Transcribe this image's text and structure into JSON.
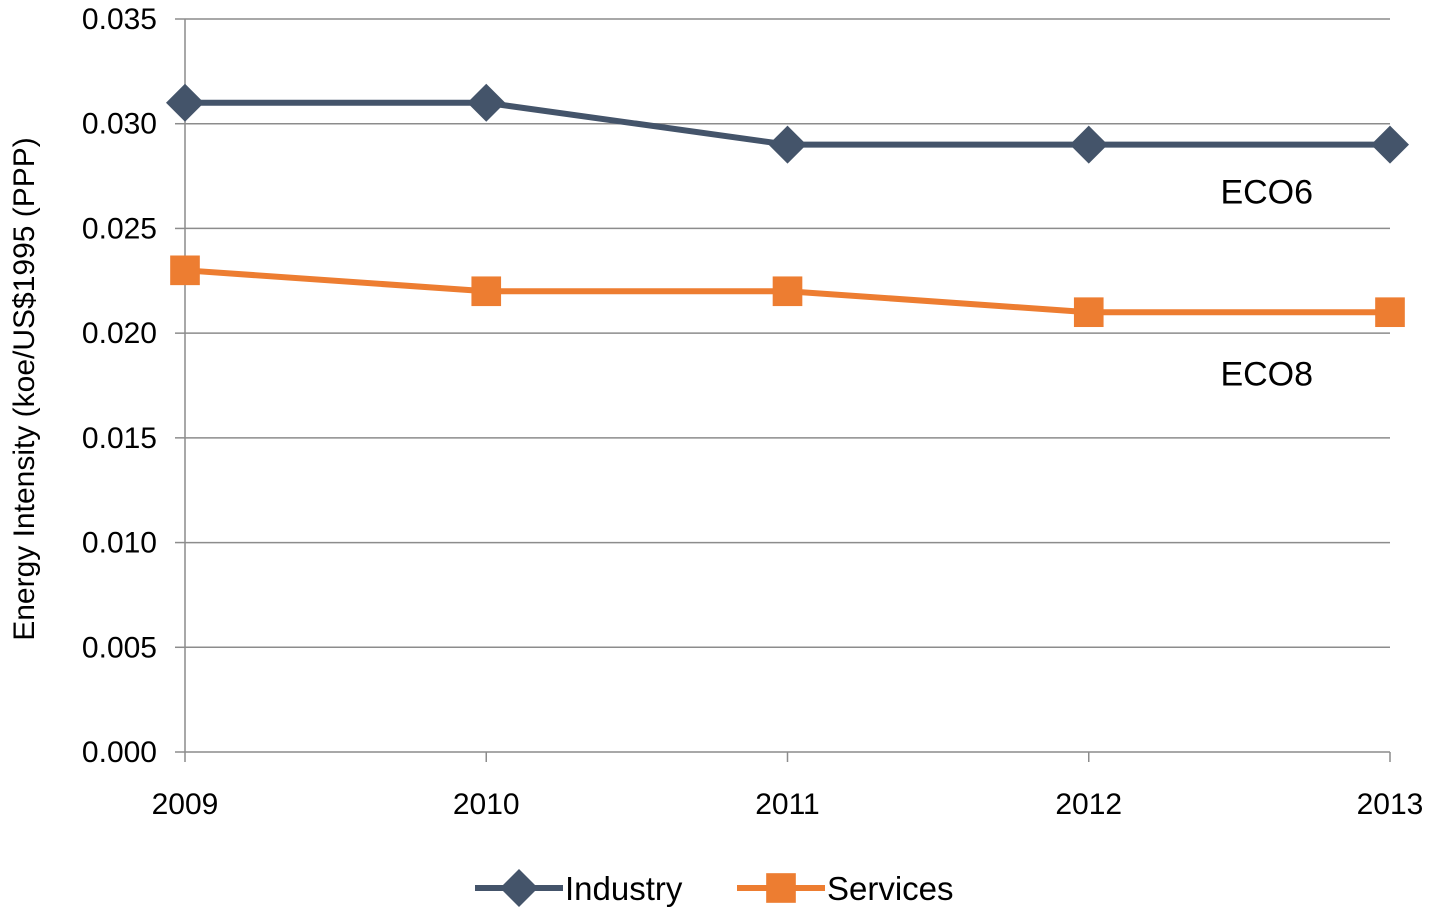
{
  "chart_data": {
    "type": "line",
    "title": "",
    "xlabel": "",
    "ylabel": "Energy Intensity (koe/US$1995 (PPP)",
    "categories": [
      "2009",
      "2010",
      "2011",
      "2012",
      "2013"
    ],
    "ylim": [
      0,
      0.035
    ],
    "yticks": [
      "0.000",
      "0.005",
      "0.010",
      "0.015",
      "0.020",
      "0.025",
      "0.030",
      "0.035"
    ],
    "grid": true,
    "legend_position": "bottom",
    "series": [
      {
        "name": "Industry",
        "values": [
          0.031,
          0.031,
          0.029,
          0.029,
          0.029
        ],
        "color": "#44546a",
        "marker": "diamond"
      },
      {
        "name": "Services",
        "values": [
          0.023,
          0.022,
          0.022,
          0.021,
          0.021
        ],
        "color": "#ed7d31",
        "marker": "square"
      }
    ],
    "annotations": [
      {
        "text": "ECO6",
        "x": "2012",
        "y": 0.0262
      },
      {
        "text": "ECO8",
        "x": "2012",
        "y": 0.0175
      }
    ]
  }
}
